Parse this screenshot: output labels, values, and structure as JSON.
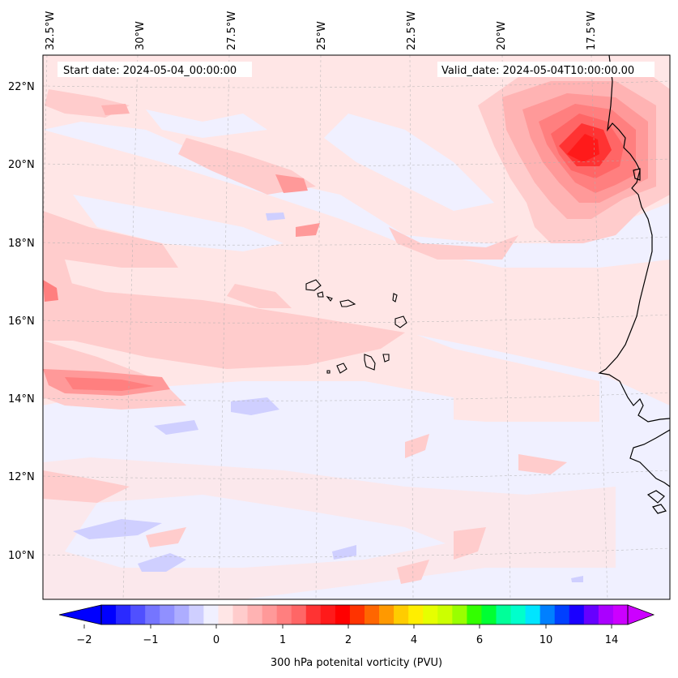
{
  "map": {
    "start_date_label": "Start date: 2024-05-04_00:00:00",
    "valid_date_label": "Valid_date: 2024-05-04T10:00:00.00",
    "lon_labels": [
      "32.5°W",
      "30°W",
      "27.5°W",
      "25°W",
      "22.5°W",
      "20°W",
      "17.5°W"
    ],
    "lat_labels": [
      "22°N",
      "20°N",
      "18°N",
      "16°N",
      "14°N",
      "12°N",
      "10°N"
    ],
    "land_color": "#f0f0ff",
    "coastline_color": "#000000"
  },
  "colorbar": {
    "label": "300 hPa potenital vorticity (PVU)",
    "tick_labels": [
      "−2",
      "−1",
      "0",
      "1",
      "2",
      "4",
      "6",
      "10",
      "14"
    ],
    "colors": [
      "#0000ff",
      "#2a2aff",
      "#5050ff",
      "#7575ff",
      "#9090ff",
      "#adadff",
      "#cfcfff",
      "#f0f0ff",
      "#ffe6e6",
      "#ffcccc",
      "#ffb3b3",
      "#ff9999",
      "#ff7f7f",
      "#ff6666",
      "#ff3333",
      "#ff1a1a",
      "#ff0000",
      "#ff3300",
      "#ff6600",
      "#ff9900",
      "#ffcc00",
      "#ffee00",
      "#e6ff00",
      "#ccff00",
      "#99ff00",
      "#33ff00",
      "#00ff33",
      "#00ff99",
      "#00ffcc",
      "#00e5ff",
      "#0080ff",
      "#0040ff",
      "#1a00ff",
      "#6600ff",
      "#aa00ff",
      "#cc00ff"
    ]
  }
}
